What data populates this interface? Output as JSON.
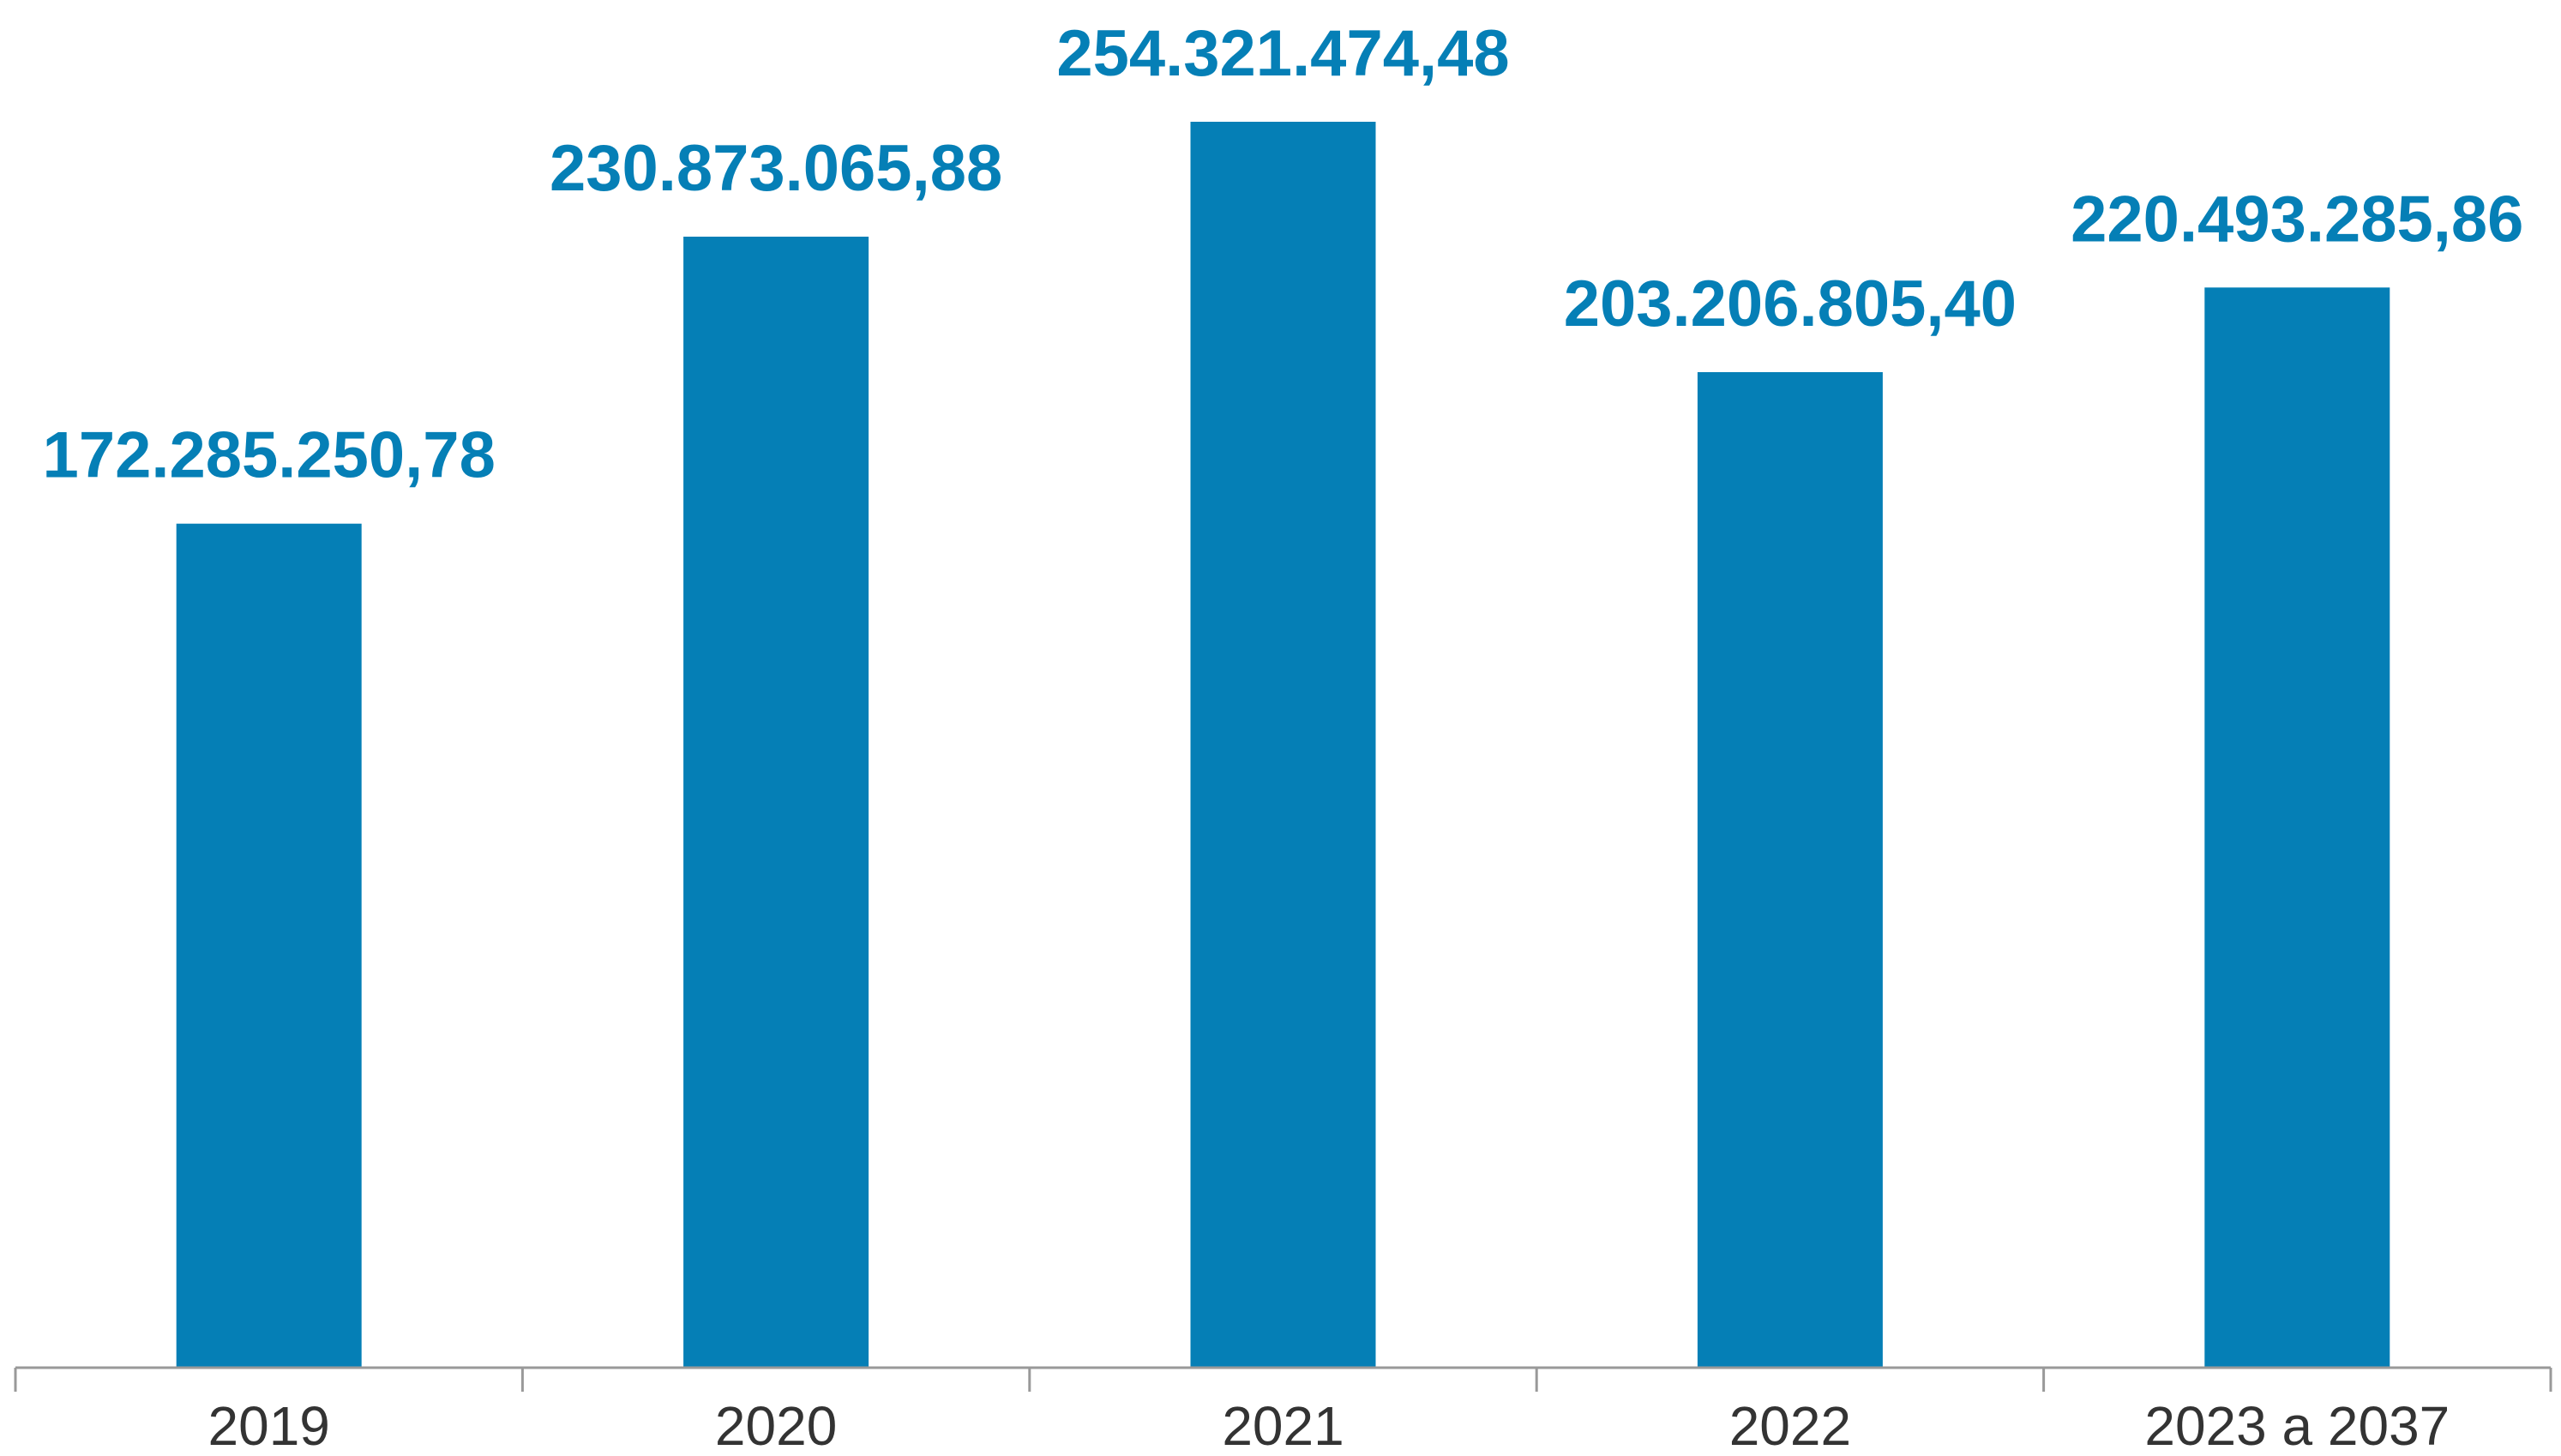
{
  "chart_data": {
    "type": "bar",
    "title": "",
    "xlabel": "",
    "ylabel": "",
    "categories": [
      "2019",
      "2020",
      "2021",
      "2022",
      "2023 a 2037"
    ],
    "values": [
      172285250.78,
      230873065.88,
      254321474.48,
      203206805.4,
      220493285.86
    ],
    "data_labels": [
      "172.285.250,78",
      "230.873.065,88",
      "254.321.474,48",
      "203.206.805,40",
      "220.493.285,86"
    ],
    "ylim": [
      0,
      254321474.48
    ],
    "grid": false,
    "legend": "none",
    "colors": {
      "bar": "#057fb6",
      "label": "#057fb6",
      "axis": "#999999",
      "tick_text": "#333333"
    }
  }
}
